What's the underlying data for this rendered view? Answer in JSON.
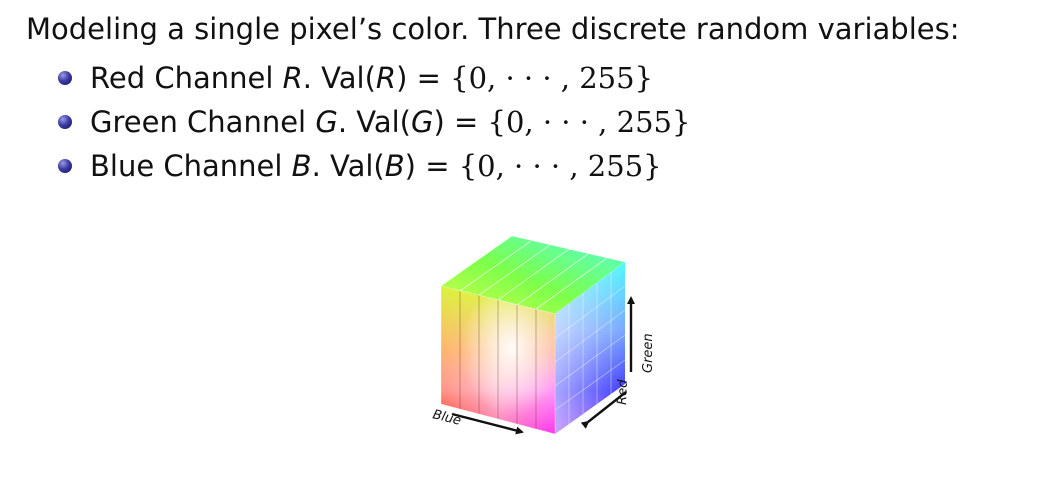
{
  "intro": "Modeling a single pixel’s color. Three discrete random variables:",
  "bullets": [
    {
      "name": "Red Channel",
      "var": "R",
      "set": "{0, · · · , 255}"
    },
    {
      "name": "Green Channel",
      "var": "G",
      "set": "{0, · · · , 255}"
    },
    {
      "name": "Blue Channel",
      "var": "B",
      "set": "{0, · · · , 255}"
    }
  ],
  "cube": {
    "axis_blue": "Blue",
    "axis_red": "Red",
    "axis_green": "Green"
  },
  "colors": {
    "bullet": "#2d2d8f",
    "text": "#111111"
  }
}
